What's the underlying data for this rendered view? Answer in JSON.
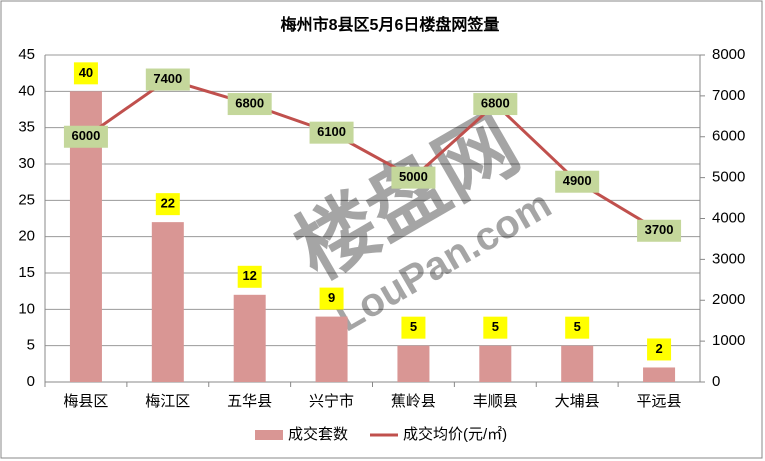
{
  "chart_data": {
    "type": "bar-line",
    "title": "梅州市8县区5月6日楼盘网签量",
    "watermark": "楼盘网",
    "watermark_sub": "LouPan.com",
    "categories": [
      "梅县区",
      "梅江区",
      "五华县",
      "兴宁市",
      "蕉岭县",
      "丰顺县",
      "大埔县",
      "平远县"
    ],
    "series": [
      {
        "name": "成交套数",
        "color": "#d99694",
        "values": [
          40,
          22,
          12,
          9,
          5,
          5,
          5,
          2
        ]
      },
      {
        "name": "成交均价(元/㎡)",
        "color": "#c0504d",
        "axis": "y2",
        "values": [
          6000,
          7400,
          6800,
          6100,
          5000,
          6800,
          4900,
          3700
        ]
      }
    ],
    "ylim": [
      0,
      45
    ],
    "yticks": [
      0,
      5,
      10,
      15,
      20,
      25,
      30,
      35,
      40,
      45
    ],
    "y2lim": [
      0,
      8000
    ],
    "y2ticks": [
      0,
      1000,
      2000,
      3000,
      4000,
      5000,
      6000,
      7000,
      8000
    ],
    "grid": true,
    "legend": "bottom"
  }
}
